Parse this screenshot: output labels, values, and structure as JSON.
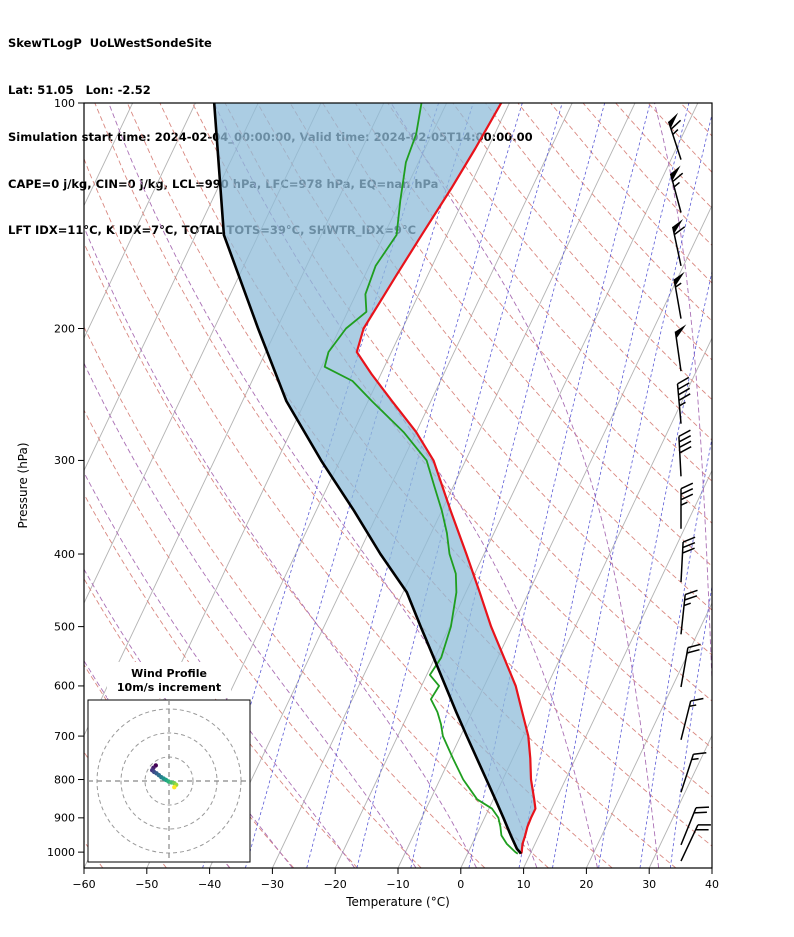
{
  "header": {
    "lines": [
      "SkewTLogP  UoLWestSondeSite",
      "Lat: 51.05   Lon: -2.52",
      "Simulation start time: 2024-02-04_00:00:00, Valid time: 2024-02-05T14:00:00.00",
      "CAPE=0 j/kg, CIN=0 j/kg, LCL=990 hPa, LFC=978 hPa, EQ=nan hPa",
      "LFT IDX=11°C, K IDX=7°C, TOTAL TOTS=39°C, SHWTR_IDX=9°C"
    ]
  },
  "chart_data": {
    "type": "skewt-logp",
    "station": "UoLWestSondeSite",
    "lat": 51.05,
    "lon": -2.52,
    "xlabel": "Temperature (°C)",
    "ylabel": "Pressure (hPa)",
    "xlim": [
      -60,
      40
    ],
    "plim": [
      100,
      1050
    ],
    "yscale": "log",
    "x_ticks": [
      -60,
      -50,
      -40,
      -30,
      -20,
      -10,
      0,
      10,
      20,
      30,
      40
    ],
    "y_ticks": [
      100,
      200,
      300,
      400,
      500,
      600,
      700,
      800,
      900,
      1000
    ],
    "skew_rotation_deg": 30,
    "indices": {
      "cape_jkg": 0,
      "cin_jkg": 0,
      "lcl_hpa": 990,
      "lfc_hpa": 978,
      "eq_hpa": "nan",
      "lifted_index_c": 11,
      "k_index_c": 7,
      "total_totals_c": 39,
      "showalter_index_c": 9
    },
    "temperature_profile": {
      "color": "#e8131b",
      "points": [
        [
          1005,
          8.5
        ],
        [
          1000,
          8.5
        ],
        [
          975,
          8.0
        ],
        [
          950,
          7.8
        ],
        [
          925,
          7.5
        ],
        [
          900,
          7.4
        ],
        [
          875,
          7.4
        ],
        [
          850,
          6.5
        ],
        [
          800,
          4.5
        ],
        [
          750,
          2.8
        ],
        [
          700,
          0.8
        ],
        [
          650,
          -2.0
        ],
        [
          600,
          -5.0
        ],
        [
          550,
          -9.0
        ],
        [
          500,
          -13.4
        ],
        [
          450,
          -17.8
        ],
        [
          400,
          -22.8
        ],
        [
          350,
          -28.6
        ],
        [
          300,
          -35.1
        ],
        [
          275,
          -40.0
        ],
        [
          250,
          -46.2
        ],
        [
          230,
          -51.5
        ],
        [
          215,
          -55.5
        ],
        [
          200,
          -56.2
        ],
        [
          185,
          -55.6
        ],
        [
          170,
          -55.0
        ],
        [
          150,
          -54.0
        ],
        [
          130,
          -52.8
        ],
        [
          115,
          -52.0
        ],
        [
          100,
          -51.3
        ]
      ]
    },
    "dewpoint_profile": {
      "color": "#1f9e1f",
      "points": [
        [
          1005,
          8.0
        ],
        [
          1000,
          7.5
        ],
        [
          975,
          5.5
        ],
        [
          950,
          4.0
        ],
        [
          925,
          3.2
        ],
        [
          900,
          2.2
        ],
        [
          875,
          0.5
        ],
        [
          850,
          -2.6
        ],
        [
          800,
          -6.3
        ],
        [
          750,
          -9.5
        ],
        [
          700,
          -12.8
        ],
        [
          675,
          -14.0
        ],
        [
          650,
          -15.5
        ],
        [
          625,
          -17.5
        ],
        [
          600,
          -17.2
        ],
        [
          580,
          -19.5
        ],
        [
          550,
          -19.0
        ],
        [
          500,
          -19.8
        ],
        [
          450,
          -21.5
        ],
        [
          425,
          -23.0
        ],
        [
          400,
          -25.5
        ],
        [
          375,
          -27.5
        ],
        [
          350,
          -30.0
        ],
        [
          325,
          -33.0
        ],
        [
          300,
          -36.2
        ],
        [
          275,
          -42.0
        ],
        [
          250,
          -49.4
        ],
        [
          235,
          -54.0
        ],
        [
          225,
          -59.5
        ],
        [
          215,
          -60.0
        ],
        [
          200,
          -59.0
        ],
        [
          190,
          -57.0
        ],
        [
          180,
          -58.5
        ],
        [
          165,
          -59.0
        ],
        [
          150,
          -58.0
        ],
        [
          135,
          -60.0
        ],
        [
          120,
          -62.0
        ],
        [
          110,
          -62.5
        ],
        [
          100,
          -64.0
        ]
      ]
    },
    "parcel_profile": {
      "color": "#000000",
      "points": [
        [
          1005,
          8.5
        ],
        [
          1000,
          8.2
        ],
        [
          990,
          7.5
        ],
        [
          950,
          5.5
        ],
        [
          900,
          3.0
        ],
        [
          850,
          0.3
        ],
        [
          800,
          -2.6
        ],
        [
          750,
          -5.7
        ],
        [
          700,
          -9.0
        ],
        [
          650,
          -12.5
        ],
        [
          600,
          -16.2
        ],
        [
          550,
          -20.2
        ],
        [
          500,
          -24.6
        ],
        [
          450,
          -29.4
        ],
        [
          400,
          -36.5
        ],
        [
          350,
          -44.0
        ],
        [
          300,
          -53.0
        ],
        [
          250,
          -63.0
        ],
        [
          200,
          -73.0
        ],
        [
          150,
          -85.5
        ],
        [
          100,
          -97.0
        ]
      ]
    },
    "shading": {
      "color": "#8fbcd9",
      "opacity": 0.75
    },
    "isotherms": {
      "start": -130,
      "end": 40,
      "step": 10,
      "color": "#b3b3b3"
    },
    "dry_adiabats": {
      "start": -60,
      "end": 210,
      "step": 10,
      "color": "#d98880"
    },
    "moist_adiabats": {
      "t_start_c": [
        -40,
        -30,
        -20,
        -10,
        0,
        10,
        20,
        30,
        40
      ],
      "color": "#aa70b5"
    },
    "mixing_ratio_lines": {
      "w_gkg": [
        0.1,
        0.2,
        0.5,
        1,
        2,
        4,
        7,
        10,
        16,
        24,
        32
      ],
      "color": "#5b5bd6"
    },
    "wind_barbs": [
      {
        "p": 119,
        "speed_kt": 65,
        "angle_deg": -18
      },
      {
        "p": 140,
        "speed_kt": 65,
        "angle_deg": -15
      },
      {
        "p": 165,
        "speed_kt": 60,
        "angle_deg": -12
      },
      {
        "p": 194,
        "speed_kt": 55,
        "angle_deg": -10
      },
      {
        "p": 228,
        "speed_kt": 50,
        "angle_deg": -8
      },
      {
        "p": 268,
        "speed_kt": 45,
        "angle_deg": -5
      },
      {
        "p": 315,
        "speed_kt": 40,
        "angle_deg": -3
      },
      {
        "p": 370,
        "speed_kt": 35,
        "angle_deg": 0
      },
      {
        "p": 436,
        "speed_kt": 30,
        "angle_deg": 3
      },
      {
        "p": 512,
        "speed_kt": 25,
        "angle_deg": 6
      },
      {
        "p": 602,
        "speed_kt": 20,
        "angle_deg": 10
      },
      {
        "p": 708,
        "speed_kt": 15,
        "angle_deg": 14
      },
      {
        "p": 832,
        "speed_kt": 15,
        "angle_deg": 18
      },
      {
        "p": 978,
        "speed_kt": 20,
        "angle_deg": 22
      },
      {
        "p": 1028,
        "speed_kt": 20,
        "angle_deg": 25
      }
    ],
    "inset": {
      "title_line1": "Wind Profile",
      "title_line2": "10m/s increment",
      "ring_increment_ms": 10,
      "rings": [
        10,
        20,
        30
      ],
      "points": [
        {
          "u": -5.5,
          "v": 6.5,
          "color": "#440154"
        },
        {
          "u": -6.5,
          "v": 5.5,
          "color": "#481b6d"
        },
        {
          "u": -7.0,
          "v": 4.5,
          "color": "#46327e"
        },
        {
          "u": -6.2,
          "v": 3.8,
          "color": "#3f4889"
        },
        {
          "u": -5.2,
          "v": 3.2,
          "color": "#365c8d"
        },
        {
          "u": -4.2,
          "v": 2.4,
          "color": "#2e6e8e"
        },
        {
          "u": -3.2,
          "v": 1.6,
          "color": "#277f8e"
        },
        {
          "u": -2.2,
          "v": 1.0,
          "color": "#21918c"
        },
        {
          "u": -1.2,
          "v": 0.4,
          "color": "#1fa187"
        },
        {
          "u": -0.2,
          "v": -0.2,
          "color": "#2db27d"
        },
        {
          "u": 1.0,
          "v": -0.6,
          "color": "#4ac16d"
        },
        {
          "u": 2.2,
          "v": -0.9,
          "color": "#70cf57"
        },
        {
          "u": 3.0,
          "v": -1.6,
          "color": "#a0da39"
        },
        {
          "u": 2.2,
          "v": -2.6,
          "color": "#fde725"
        }
      ]
    }
  }
}
